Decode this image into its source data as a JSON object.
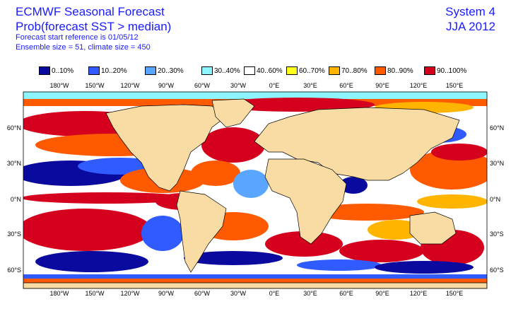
{
  "header": {
    "title": "ECMWF Seasonal Forecast",
    "subtitle": "Prob(forecast SST > median)",
    "start_reference": "Forecast start reference is 01/05/12",
    "ensemble_info": "Ensemble size = 51, climate size = 450",
    "system": "System 4",
    "season": "JJA 2012"
  },
  "legend": [
    {
      "label": "0..10%",
      "color": "#0a0a9e"
    },
    {
      "label": "10..20%",
      "color": "#2f5bff"
    },
    {
      "label": "20..30%",
      "color": "#5aa5ff"
    },
    {
      "label": "30..40%",
      "color": "#8cf5ff"
    },
    {
      "label": "40..60%",
      "color": "#ffffff"
    },
    {
      "label": "60..70%",
      "color": "#ffff1e"
    },
    {
      "label": "70..80%",
      "color": "#ffb400"
    },
    {
      "label": "80..90%",
      "color": "#ff5a00"
    },
    {
      "label": "90..100%",
      "color": "#d4001e"
    }
  ],
  "map": {
    "land_color": "#f9dca3",
    "lon_labels": [
      "180°W",
      "150°W",
      "120°W",
      "90°W",
      "60°W",
      "30°W",
      "0°E",
      "30°E",
      "60°E",
      "90°E",
      "120°E",
      "150°E"
    ],
    "lat_labels_left": [
      "60°N",
      "30°N",
      "0°N",
      "30°S",
      "60°S"
    ],
    "lat_labels_right": [
      "60°N",
      "30°N",
      "0°N",
      "30°S",
      "60°S"
    ]
  }
}
